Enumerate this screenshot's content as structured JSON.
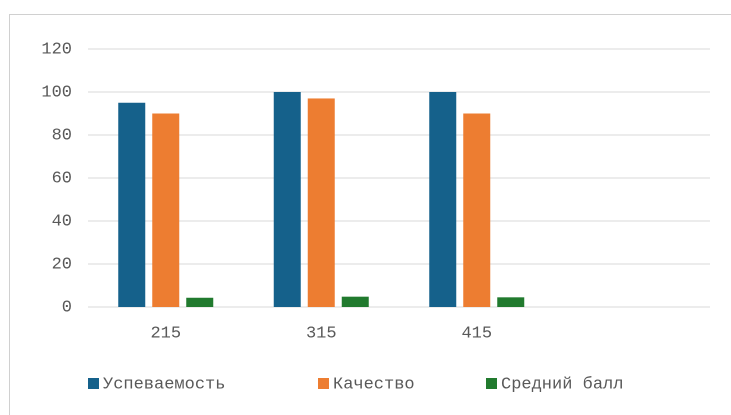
{
  "chart_data": {
    "type": "bar",
    "categories": [
      "215",
      "315",
      "415",
      null
    ],
    "series": [
      {
        "name": "Успеваемость",
        "color": "#15618b",
        "values": [
          95,
          100,
          100,
          null
        ]
      },
      {
        "name": "Качество",
        "color": "#ed7d31",
        "values": [
          90,
          97,
          90,
          null
        ]
      },
      {
        "name": "Средний балл",
        "color": "#217a2e",
        "values": [
          4.3,
          4.8,
          4.5,
          null
        ]
      }
    ],
    "ylim": [
      0,
      120
    ],
    "yticks": [
      0,
      20,
      40,
      60,
      80,
      100,
      120
    ],
    "grid": true,
    "legend": "bottom"
  }
}
